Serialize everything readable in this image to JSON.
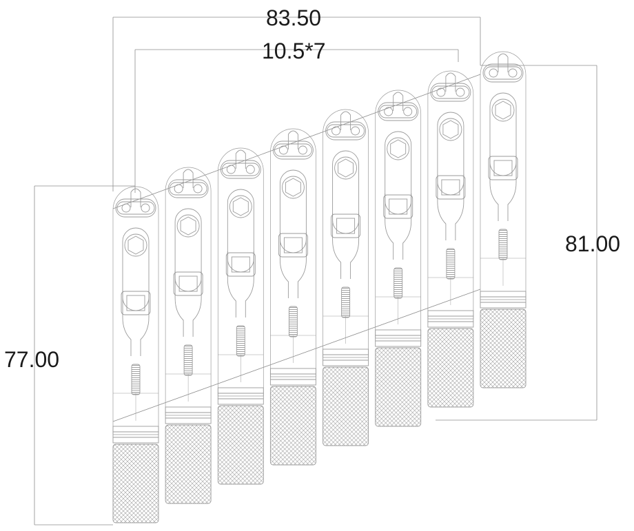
{
  "drawing": {
    "line_color": "#9a9a9a",
    "dim_line_color": "#8c8c8c",
    "background": "#ffffff",
    "part_count": 8,
    "dimensions": {
      "overall_width": "83.50",
      "pitch": "10.5*7",
      "right_height": "81.00",
      "left_height": "77.00"
    }
  }
}
